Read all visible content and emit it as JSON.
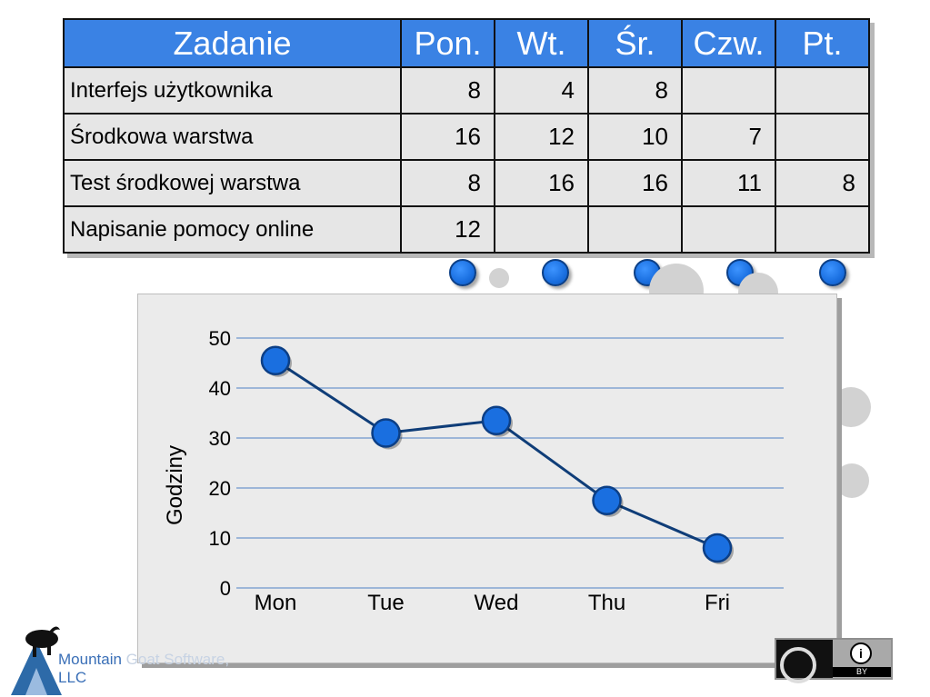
{
  "table": {
    "header": [
      "Zadanie",
      "Pon.",
      "Wt.",
      "Śr.",
      "Czw.",
      "Pt."
    ],
    "rows": [
      {
        "task": "Interfejs użytkownika",
        "values": [
          "8",
          "4",
          "8",
          "",
          ""
        ]
      },
      {
        "task": "Środkowa warstwa",
        "values": [
          "16",
          "12",
          "10",
          "7",
          ""
        ]
      },
      {
        "task": "Test środkowej warstwa",
        "values": [
          "8",
          "16",
          "16",
          "11",
          "8"
        ]
      },
      {
        "task": "Napisanie pomocy online",
        "values": [
          "12",
          "",
          "",
          "",
          ""
        ]
      }
    ]
  },
  "chart_data": {
    "type": "line",
    "title": "",
    "xlabel": "",
    "ylabel": "Godziny",
    "categories": [
      "Mon",
      "Tue",
      "Wed",
      "Thu",
      "Fri"
    ],
    "series": [
      {
        "values": [
          45.5,
          31,
          33.5,
          17.5,
          8
        ]
      }
    ],
    "ylim": [
      0,
      50
    ],
    "yticks": [
      0,
      10,
      20,
      30,
      40,
      50
    ],
    "grid": true,
    "colors": {
      "line": "#0f3d78",
      "marker": "#1a6fe0",
      "grid": "#9db6d8"
    }
  },
  "footer": {
    "company_line1": "Mountain",
    "company_line1_faded": " Goat Software,",
    "company_line2": "LLC",
    "license_label": "BY",
    "license_icon": "creative-commons-by-icon"
  }
}
